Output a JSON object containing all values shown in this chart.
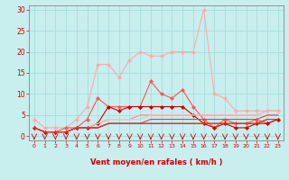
{
  "x": [
    0,
    1,
    2,
    3,
    4,
    5,
    6,
    7,
    8,
    9,
    10,
    11,
    12,
    13,
    14,
    15,
    16,
    17,
    18,
    19,
    20,
    21,
    22,
    23
  ],
  "series": [
    {
      "color": "#ffaaaa",
      "lw": 0.8,
      "marker": "D",
      "ms": 2,
      "values": [
        4,
        2,
        2,
        2,
        4,
        7,
        17,
        17,
        14,
        18,
        20,
        19,
        19,
        20,
        20,
        20,
        30,
        10,
        9,
        6,
        6,
        6,
        6,
        6
      ]
    },
    {
      "color": "#ff5555",
      "lw": 0.8,
      "marker": "D",
      "ms": 2,
      "values": [
        2,
        1,
        1,
        2,
        2,
        4,
        9,
        7,
        7,
        7,
        7,
        13,
        10,
        9,
        11,
        7,
        4,
        2,
        4,
        3,
        3,
        4,
        3,
        4
      ]
    },
    {
      "color": "#cc0000",
      "lw": 0.8,
      "marker": "D",
      "ms": 2,
      "values": [
        2,
        1,
        1,
        1,
        2,
        2,
        3,
        7,
        6,
        7,
        7,
        7,
        7,
        7,
        7,
        5,
        3,
        2,
        3,
        2,
        2,
        3,
        3,
        4
      ]
    },
    {
      "color": "#ff8888",
      "lw": 0.8,
      "marker": null,
      "ms": 0,
      "values": [
        2,
        1,
        1,
        1,
        2,
        2,
        3,
        4,
        4,
        4,
        5,
        5,
        5,
        5,
        5,
        5,
        5,
        5,
        5,
        5,
        5,
        5,
        6,
        6
      ]
    },
    {
      "color": "#ffbbbb",
      "lw": 0.8,
      "marker": null,
      "ms": 0,
      "values": [
        2,
        1,
        1,
        1,
        2,
        2,
        3,
        4,
        4,
        4,
        4,
        5,
        5,
        5,
        5,
        5,
        5,
        5,
        5,
        5,
        5,
        5,
        6,
        6
      ]
    },
    {
      "color": "#dd4444",
      "lw": 0.8,
      "marker": null,
      "ms": 0,
      "values": [
        2,
        1,
        1,
        1,
        2,
        2,
        2,
        3,
        3,
        3,
        3,
        4,
        4,
        4,
        4,
        4,
        4,
        4,
        4,
        4,
        4,
        4,
        5,
        5
      ]
    },
    {
      "color": "#bb2222",
      "lw": 0.8,
      "marker": null,
      "ms": 0,
      "values": [
        2,
        1,
        1,
        1,
        2,
        2,
        2,
        3,
        3,
        3,
        3,
        3,
        3,
        3,
        3,
        3,
        3,
        3,
        3,
        3,
        3,
        3,
        4,
        4
      ]
    },
    {
      "color": "#ee3333",
      "lw": 0.8,
      "marker": null,
      "ms": 0,
      "values": [
        2,
        1,
        1,
        1,
        2,
        2,
        2,
        3,
        3,
        3,
        3,
        3,
        3,
        3,
        3,
        3,
        3,
        3,
        3,
        3,
        3,
        3,
        4,
        4
      ]
    }
  ],
  "xlabel": "Vent moyen/en rafales ( km/h )",
  "ylim": [
    -1,
    31
  ],
  "xlim": [
    -0.5,
    23.5
  ],
  "yticks": [
    0,
    5,
    10,
    15,
    20,
    25,
    30
  ],
  "xticks": [
    0,
    1,
    2,
    3,
    4,
    5,
    6,
    7,
    8,
    9,
    10,
    11,
    12,
    13,
    14,
    15,
    16,
    17,
    18,
    19,
    20,
    21,
    22,
    23
  ],
  "bg_color": "#c8eeee",
  "grid_color": "#aadddd",
  "tick_color": "#cc0000",
  "label_color": "#cc0000",
  "spine_color": "#888888",
  "arrow_color": "#cc0000"
}
